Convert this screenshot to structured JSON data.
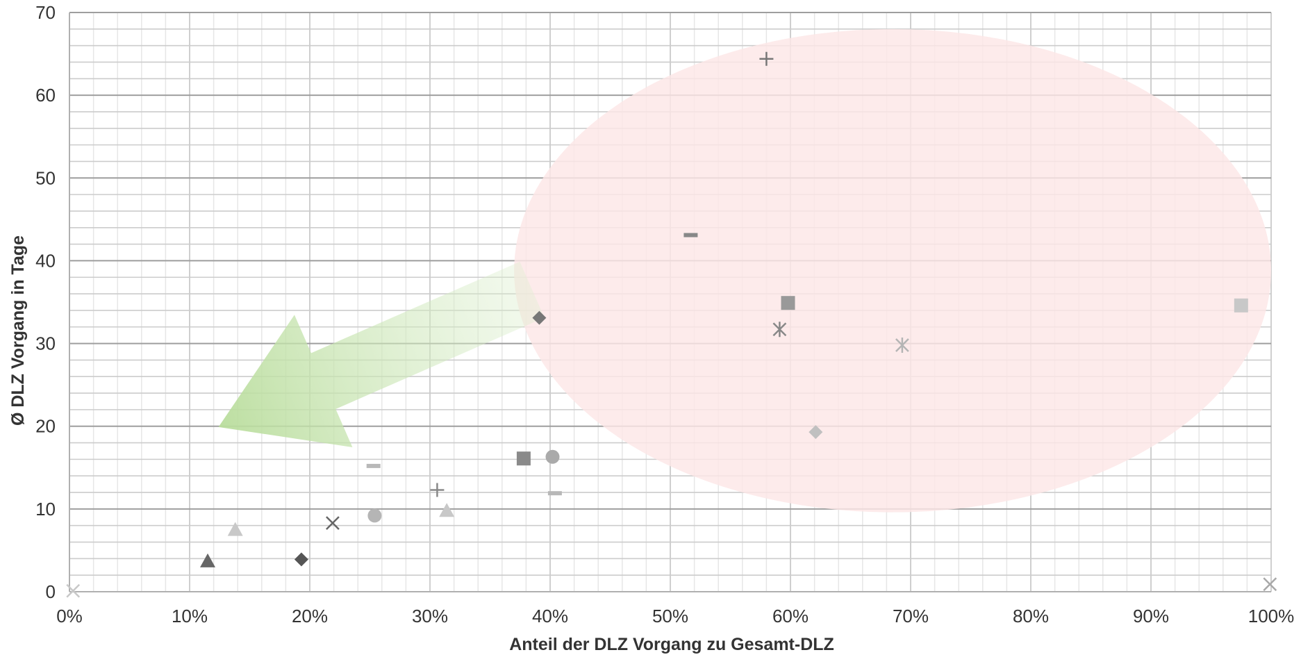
{
  "chart_data": {
    "type": "scatter",
    "title": "",
    "xlabel": "Anteil der DLZ Vorgang zu Gesamt-DLZ",
    "ylabel": "Ø DLZ Vorgang  in Tage",
    "xlim": [
      0,
      100
    ],
    "ylim": [
      0,
      70
    ],
    "x_unit": "%",
    "x_ticks": [
      "0%",
      "10%",
      "20%",
      "30%",
      "40%",
      "50%",
      "60%",
      "70%",
      "80%",
      "90%",
      "100%"
    ],
    "y_ticks": [
      "0",
      "10",
      "20",
      "30",
      "40",
      "50",
      "60",
      "70"
    ],
    "grid": "on (major and minor)",
    "legend": "none",
    "points": [
      {
        "x": 0.3,
        "y": 0.1,
        "marker": "x",
        "color": "#c8c8c8"
      },
      {
        "x": 99.9,
        "y": 0.9,
        "marker": "x",
        "color": "#a8a8a8"
      },
      {
        "x": 11.5,
        "y": 3.7,
        "marker": "triangle",
        "color": "#666666"
      },
      {
        "x": 13.8,
        "y": 7.5,
        "marker": "triangle",
        "color": "#c8c8c8"
      },
      {
        "x": 19.3,
        "y": 3.9,
        "marker": "diamond",
        "color": "#555555"
      },
      {
        "x": 21.9,
        "y": 8.3,
        "marker": "x",
        "color": "#666666"
      },
      {
        "x": 25.3,
        "y": 15.2,
        "marker": "dash",
        "color": "#b8b8b8"
      },
      {
        "x": 25.4,
        "y": 9.2,
        "marker": "circle",
        "color": "#b5b5b5"
      },
      {
        "x": 30.6,
        "y": 12.3,
        "marker": "plus",
        "color": "#888888"
      },
      {
        "x": 31.4,
        "y": 9.8,
        "marker": "triangle",
        "color": "#c8c8c8"
      },
      {
        "x": 37.8,
        "y": 16.1,
        "marker": "square",
        "color": "#8a8a8a"
      },
      {
        "x": 39.1,
        "y": 33.1,
        "marker": "diamond",
        "color": "#777777"
      },
      {
        "x": 40.2,
        "y": 16.3,
        "marker": "circle",
        "color": "#aaaaaa"
      },
      {
        "x": 40.4,
        "y": 11.9,
        "marker": "dash",
        "color": "#b8b8b8"
      },
      {
        "x": 51.7,
        "y": 43.1,
        "marker": "dash",
        "color": "#888888"
      },
      {
        "x": 58.0,
        "y": 64.4,
        "marker": "plus",
        "color": "#777777"
      },
      {
        "x": 59.1,
        "y": 31.7,
        "marker": "asterisk",
        "color": "#888888"
      },
      {
        "x": 59.8,
        "y": 34.9,
        "marker": "square",
        "color": "#999999"
      },
      {
        "x": 62.1,
        "y": 19.3,
        "marker": "diamond",
        "color": "#c0c0c0"
      },
      {
        "x": 69.3,
        "y": 29.8,
        "marker": "asterisk",
        "color": "#b5b5b5"
      },
      {
        "x": 97.5,
        "y": 34.6,
        "marker": "square",
        "color": "#c8c8c8"
      }
    ],
    "annotations": [
      {
        "type": "ellipse",
        "fill": "#fde7e7",
        "cx": 68.5,
        "cy": 38.8,
        "rx": 31.5,
        "ry": 29.2
      },
      {
        "type": "arrow",
        "fill": "#b9dd9c",
        "from": [
          38.5,
          36.5
        ],
        "to": [
          12.4,
          19.9
        ]
      }
    ]
  }
}
